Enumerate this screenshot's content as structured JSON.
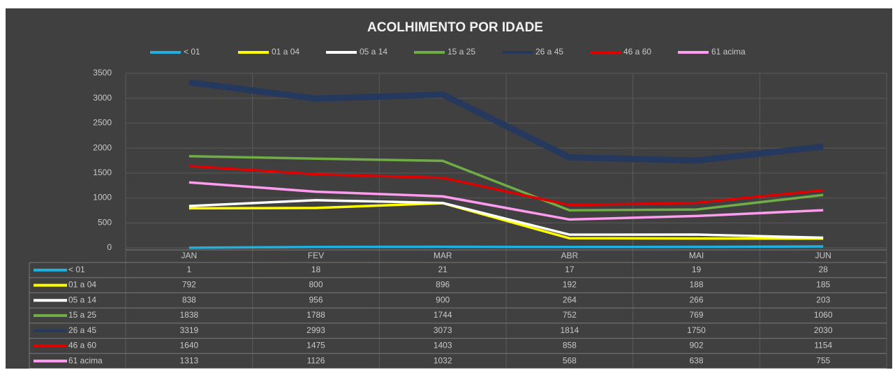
{
  "chart_data": {
    "type": "line",
    "title": "ACOLHIMENTO POR IDADE",
    "categories": [
      "JAN",
      "FEV",
      "MAR",
      "ABR",
      "MAI",
      "JUN"
    ],
    "series": [
      {
        "name": "< 01",
        "color": "#1fb0e0",
        "values": [
          1,
          18,
          21,
          17,
          19,
          28
        ]
      },
      {
        "name": "01 a 04",
        "color": "#ffff00",
        "values": [
          792,
          800,
          896,
          192,
          188,
          185
        ]
      },
      {
        "name": "05 a 14",
        "color": "#ffffff",
        "values": [
          838,
          956,
          900,
          264,
          266,
          203
        ]
      },
      {
        "name": "15 a 25",
        "color": "#70ad47",
        "values": [
          1838,
          1788,
          1744,
          752,
          769,
          1060
        ]
      },
      {
        "name": "26 a 45",
        "color": "#25385e",
        "values": [
          3319,
          2993,
          3073,
          1814,
          1750,
          2030
        ]
      },
      {
        "name": "46 a 60",
        "color": "#e00000",
        "values": [
          1640,
          1475,
          1403,
          858,
          902,
          1154
        ]
      },
      {
        "name": "61 acima",
        "color": "#ff9cf0",
        "values": [
          1313,
          1126,
          1032,
          568,
          638,
          755
        ]
      }
    ],
    "ylim": [
      0,
      3500
    ],
    "yticks": [
      0,
      500,
      1000,
      1500,
      2000,
      2500,
      3000,
      3500
    ],
    "grid": true,
    "legend": "top"
  }
}
